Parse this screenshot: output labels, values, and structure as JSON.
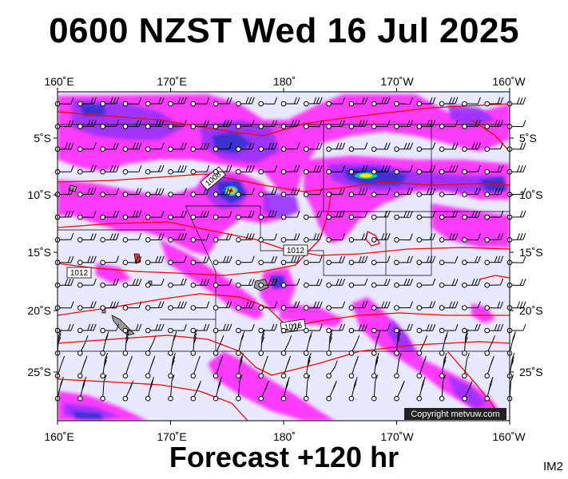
{
  "header": {
    "title": "0600 NZST Wed 16 Jul 2025"
  },
  "footer": {
    "forecast": "Forecast +120 hr",
    "code": "IM2"
  },
  "axes": {
    "top_lon": [
      "160˚E",
      "170˚E",
      "180˚",
      "170˚W",
      "160˚W"
    ],
    "bottom_lon": [
      "160˚E",
      "170˚E",
      "180˚",
      "170˚W",
      "160˚W"
    ],
    "left_lat": [
      "5˚S",
      "10˚S",
      "15˚S",
      "20˚S",
      "25˚S"
    ],
    "right_lat": [
      "5˚S",
      "10˚S",
      "15˚S",
      "20˚S",
      "25˚S"
    ]
  },
  "isobars": [
    "1008",
    "1012",
    "1012",
    "1016"
  ],
  "copyright": "Copyright metvuw.com",
  "colors": {
    "background": "#e8e8ff",
    "rain_light": "#ff33ff",
    "rain_mid": "#9933ff",
    "rain_heavy": "#3333cc",
    "rain_peak": "#ffcc00",
    "isobar": "#ff0000"
  }
}
